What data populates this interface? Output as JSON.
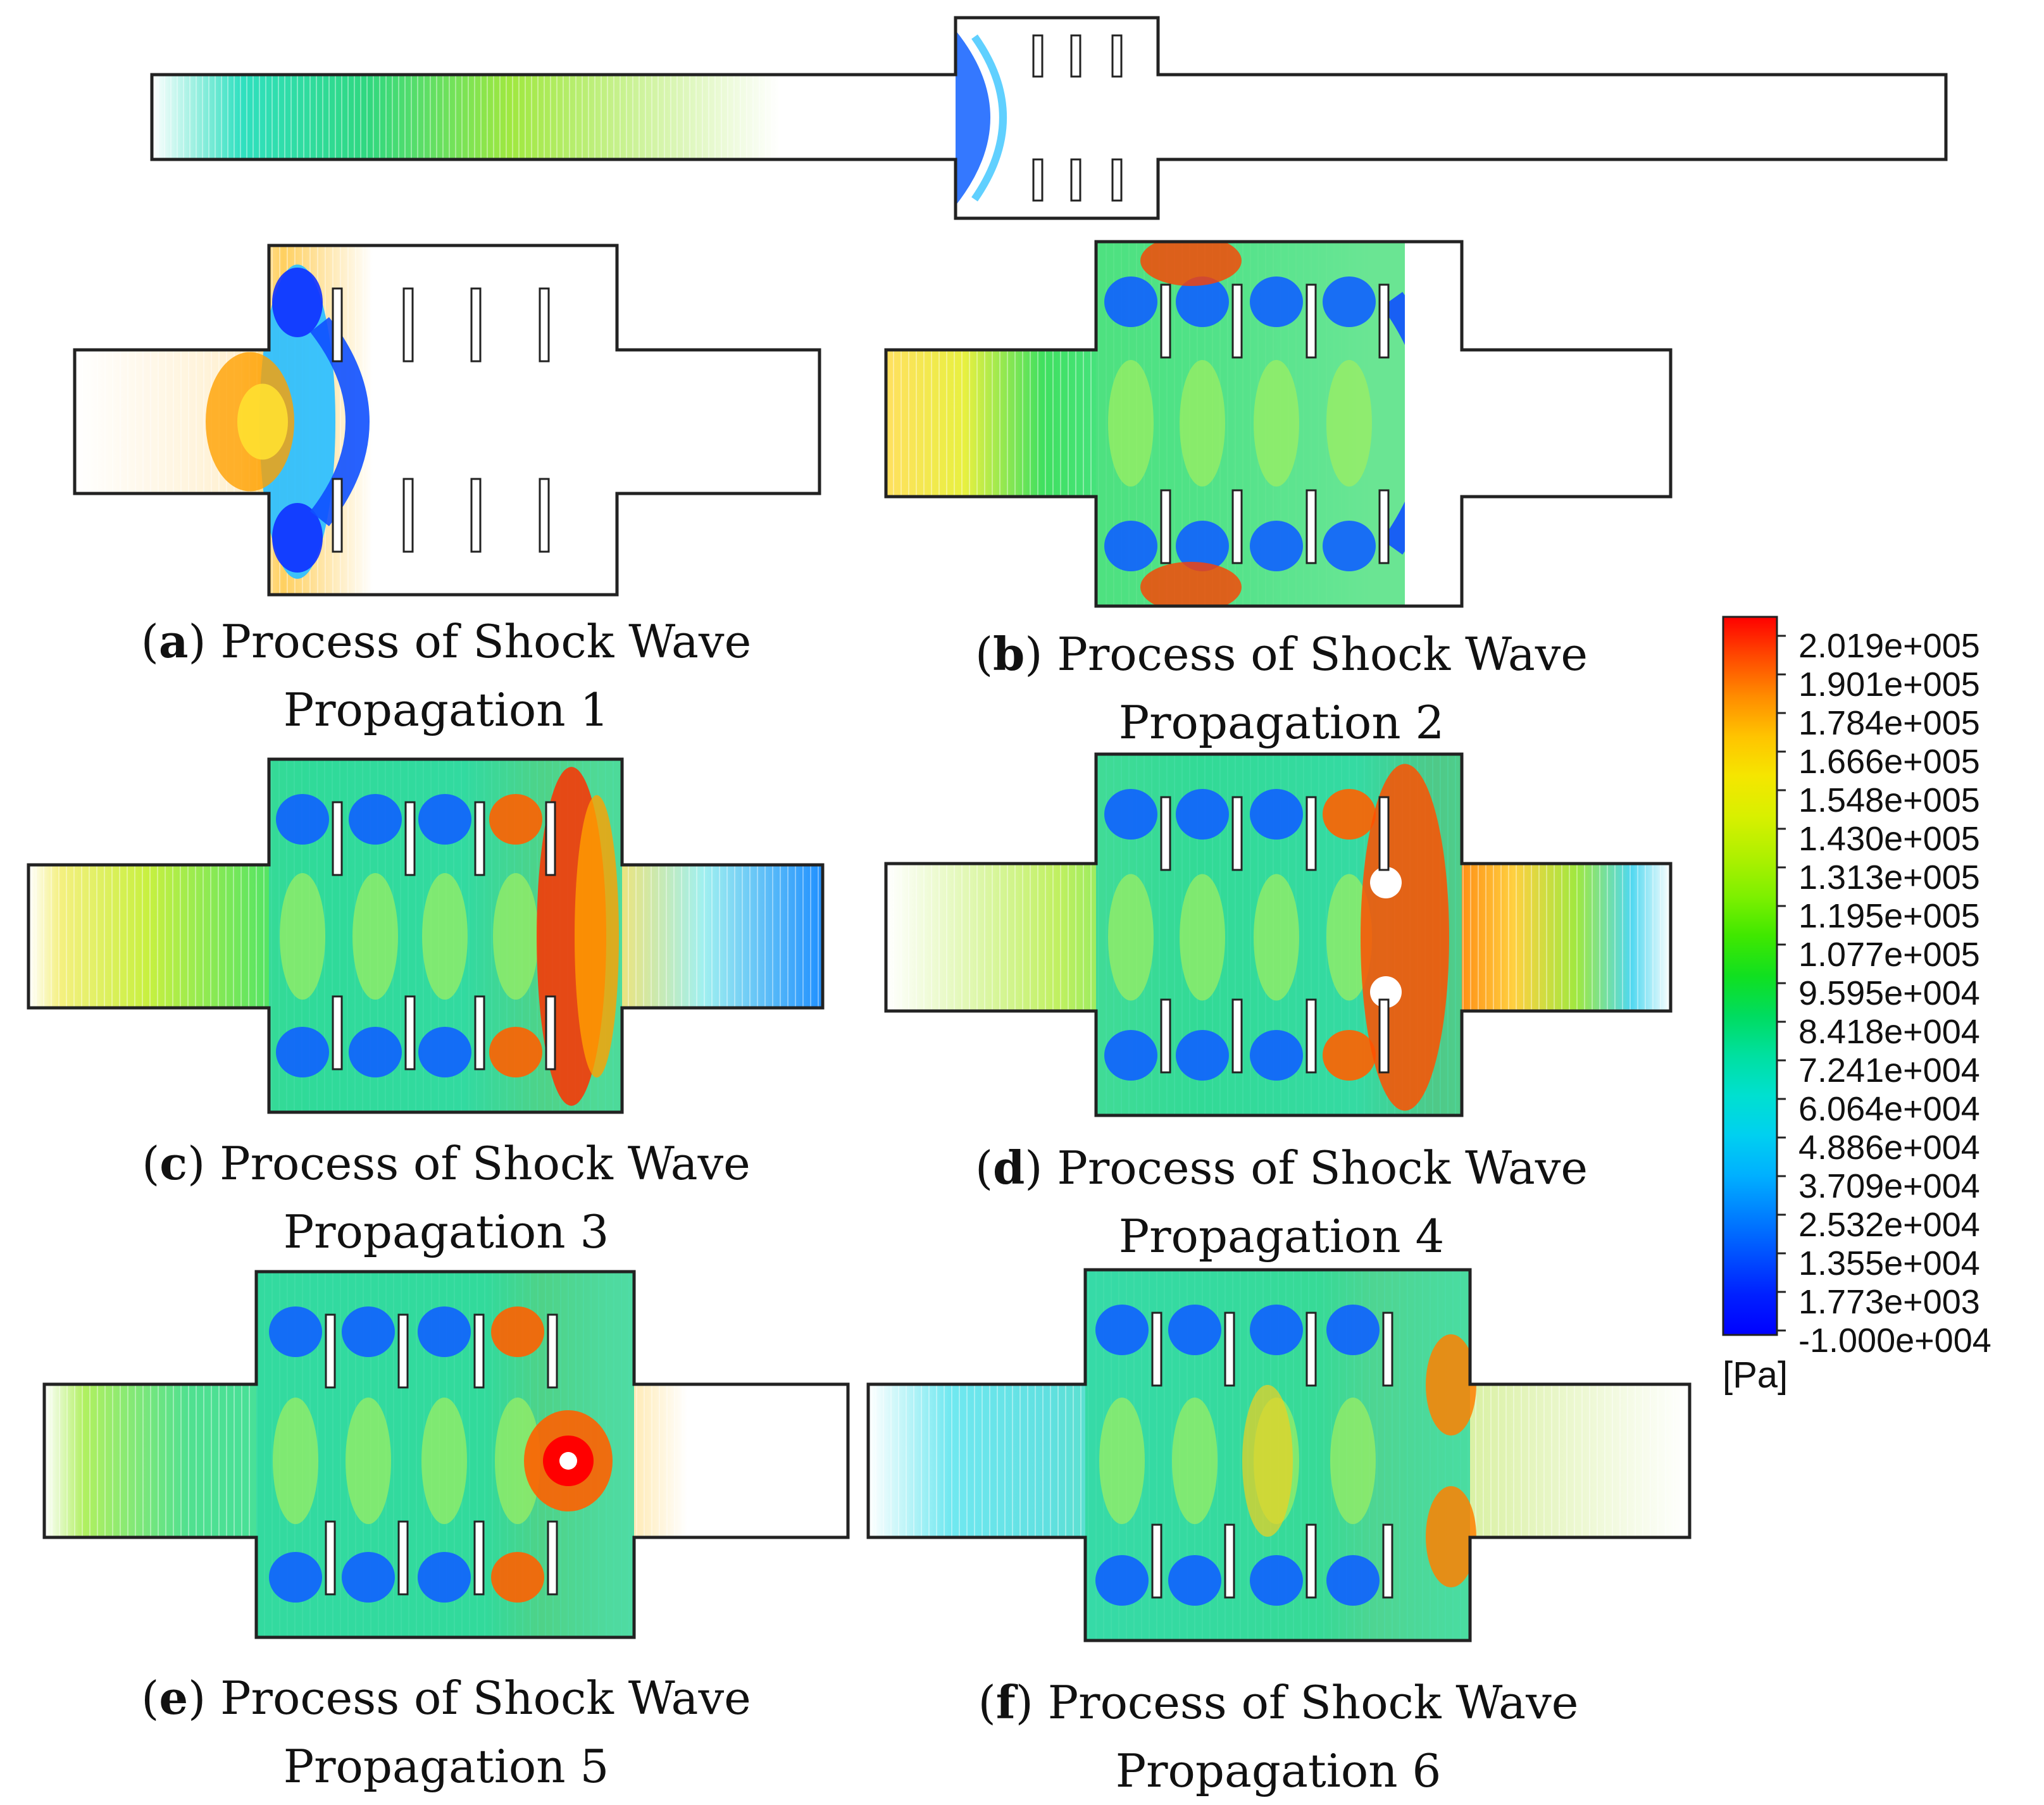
{
  "panels": [
    {
      "id": "top",
      "label": "",
      "caption": "",
      "stage": 0
    },
    {
      "id": "a",
      "label": "a",
      "caption": "Process of Shock Wave Propagation 1",
      "stage": 1
    },
    {
      "id": "b",
      "label": "b",
      "caption": "Process of Shock Wave Propagation 2",
      "stage": 2
    },
    {
      "id": "c",
      "label": "c",
      "caption": "Process of Shock Wave Propagation 3",
      "stage": 3
    },
    {
      "id": "d",
      "label": "d",
      "caption": "Process of Shock Wave Propagation 4",
      "stage": 4
    },
    {
      "id": "e",
      "label": "e",
      "caption": "Process of Shock Wave Propagation 5",
      "stage": 5
    },
    {
      "id": "f",
      "label": "f",
      "caption": "Process of Shock Wave Propagation 6",
      "stage": 6
    }
  ],
  "captions": {
    "a": {
      "label": "a",
      "line1": "Process of Shock Wave",
      "line2": "Propagation 1"
    },
    "b": {
      "label": "b",
      "line1": "Process of Shock Wave",
      "line2": "Propagation 2"
    },
    "c": {
      "label": "c",
      "line1": "Process of Shock Wave",
      "line2": "Propagation 3"
    },
    "d": {
      "label": "d",
      "line1": "Process of Shock Wave",
      "line2": "Propagation 4"
    },
    "e": {
      "label": "e",
      "line1": "Process of Shock Wave",
      "line2": "Propagation 5"
    },
    "f": {
      "label": "f",
      "line1": "Process of Shock Wave",
      "line2": "Propagation 6"
    }
  },
  "legend": {
    "unit": "[Pa]",
    "values": [
      "2.019e+005",
      "1.901e+005",
      "1.784e+005",
      "1.666e+005",
      "1.548e+005",
      "1.430e+005",
      "1.313e+005",
      "1.195e+005",
      "1.077e+005",
      "9.595e+004",
      "8.418e+004",
      "7.241e+004",
      "6.064e+004",
      "4.886e+004",
      "3.709e+004",
      "2.532e+004",
      "1.355e+004",
      "1.773e+003",
      "-1.000e+004"
    ],
    "colors": [
      "#ff0000",
      "#ff4a00",
      "#ff8c00",
      "#ffc400",
      "#f5e600",
      "#d8f000",
      "#b0f000",
      "#7ef000",
      "#40e800",
      "#10e020",
      "#00dc60",
      "#00e0a0",
      "#00e0d0",
      "#00d0f0",
      "#00b0ff",
      "#0080ff",
      "#0050ff",
      "#0020ff",
      "#0000ff"
    ]
  }
}
